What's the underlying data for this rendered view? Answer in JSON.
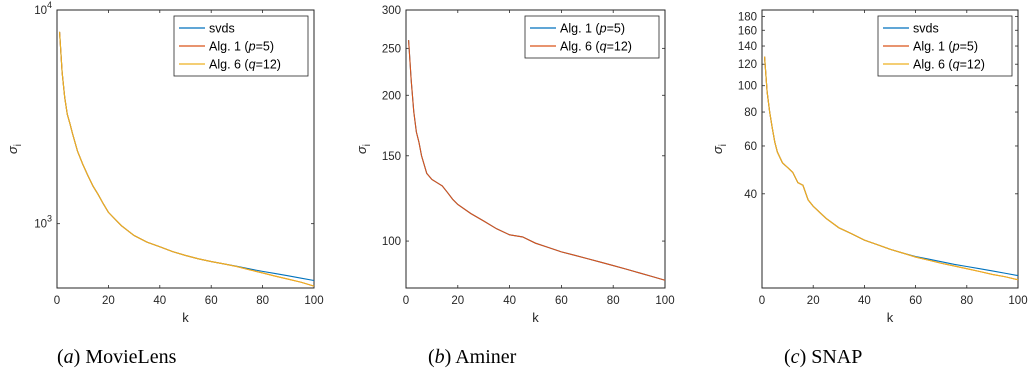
{
  "colors": {
    "svds": "#0072BD",
    "alg1": "#D95319",
    "alg6": "#EDB120"
  },
  "panels": [
    {
      "caption_prefix": "(",
      "caption_letter": "a",
      "caption_suffix": ") MovieLens",
      "chart_data": {
        "type": "line",
        "xlabel": "k",
        "ylabel": "σ_i",
        "xlim": [
          0,
          100
        ],
        "ylim": [
          500,
          10000
        ],
        "yscale": "log",
        "xticks": [
          0,
          20,
          40,
          60,
          80,
          100
        ],
        "xtick_labels": [
          "0",
          "20",
          "40",
          "60",
          "80",
          "100"
        ],
        "yticks": [
          1000,
          10000
        ],
        "ytick_labels": [
          "10³",
          "10⁴"
        ],
        "legend_position": "top-right",
        "x": [
          1,
          2,
          3,
          4,
          5,
          6,
          8,
          10,
          12,
          14,
          16,
          18,
          20,
          25,
          30,
          35,
          40,
          45,
          50,
          55,
          60,
          65,
          70,
          75,
          80,
          85,
          90,
          95,
          100
        ],
        "series": [
          {
            "name_prefix": "svds",
            "name_var": "",
            "name_suffix": "",
            "color_key": "svds",
            "values": [
              7900,
              5100,
              3900,
              3250,
              2950,
              2650,
              2180,
              1900,
              1680,
              1500,
              1370,
              1240,
              1130,
              980,
              880,
              820,
              780,
              740,
              710,
              685,
              665,
              648,
              632,
              614,
              598,
              584,
              570,
              556,
              542
            ]
          },
          {
            "name_prefix": "Alg. 1 (",
            "name_var": "p",
            "name_suffix": "=5)",
            "color_key": "alg1",
            "values": [
              7900,
              5100,
              3900,
              3250,
              2950,
              2650,
              2180,
              1900,
              1680,
              1500,
              1370,
              1240,
              1130,
              980,
              880,
              820,
              780,
              740,
              710,
              685,
              665,
              648,
              630,
              608,
              588,
              568,
              550,
              532,
              510
            ]
          },
          {
            "name_prefix": "Alg. 6 (",
            "name_var": "q",
            "name_suffix": "=12)",
            "color_key": "alg6",
            "values": [
              7900,
              5100,
              3900,
              3250,
              2950,
              2650,
              2180,
              1900,
              1680,
              1500,
              1370,
              1240,
              1130,
              980,
              880,
              820,
              780,
              740,
              710,
              685,
              665,
              648,
              630,
              608,
              588,
              568,
              550,
              532,
              510
            ]
          }
        ]
      }
    },
    {
      "caption_prefix": "(",
      "caption_letter": "b",
      "caption_suffix": ") Aminer",
      "chart_data": {
        "type": "line",
        "xlabel": "k",
        "ylabel": "σ_i",
        "xlim": [
          0,
          100
        ],
        "ylim": [
          80,
          300
        ],
        "yscale": "log",
        "xticks": [
          0,
          20,
          40,
          60,
          80,
          100
        ],
        "xtick_labels": [
          "0",
          "20",
          "40",
          "60",
          "80",
          "100"
        ],
        "yticks": [
          100,
          150,
          200,
          250,
          300
        ],
        "ytick_labels": [
          "100",
          "150",
          "200",
          "250",
          "300"
        ],
        "legend_position": "top-right",
        "x": [
          1,
          2,
          3,
          4,
          5,
          6,
          8,
          10,
          12,
          14,
          16,
          18,
          20,
          25,
          30,
          35,
          40,
          45,
          50,
          55,
          60,
          65,
          70,
          75,
          80,
          85,
          90,
          95,
          100
        ],
        "series": [
          {
            "name_prefix": "Alg. 1 (",
            "name_var": "p",
            "name_suffix": "=5)",
            "color_key": "svds",
            "values": [
              260,
              215,
              185,
              168,
              160,
              150,
              138,
              134,
              132,
              130,
              126,
              122,
              119,
              114,
              110,
              106,
              103,
              102,
              99,
              97,
              95,
              93.5,
              92,
              90.5,
              89,
              87.5,
              86,
              84.5,
              83
            ]
          },
          {
            "name_prefix": "Alg. 6 (",
            "name_var": "q",
            "name_suffix": "=12)",
            "color_key": "alg1",
            "values": [
              260,
              215,
              185,
              168,
              160,
              150,
              138,
              134,
              132,
              130,
              126,
              122,
              119,
              114,
              110,
              106,
              103,
              102,
              99,
              97,
              95,
              93.5,
              92,
              90.5,
              89,
              87.5,
              86,
              84.5,
              83
            ]
          }
        ]
      }
    },
    {
      "caption_prefix": "(",
      "caption_letter": "c",
      "caption_suffix": ") SNAP",
      "chart_data": {
        "type": "line",
        "xlabel": "k",
        "ylabel": "σ_i",
        "xlim": [
          0,
          100
        ],
        "ylim": [
          18,
          190
        ],
        "yscale": "log",
        "xticks": [
          0,
          20,
          40,
          60,
          80,
          100
        ],
        "xtick_labels": [
          "0",
          "20",
          "40",
          "60",
          "80",
          "100"
        ],
        "yticks": [
          40,
          60,
          80,
          100,
          120,
          140,
          160,
          180
        ],
        "ytick_labels": [
          "40",
          "60",
          "80",
          "100",
          "120",
          "140",
          "160",
          "180"
        ],
        "legend_position": "top-right",
        "x": [
          1,
          2,
          3,
          4,
          5,
          6,
          8,
          10,
          12,
          14,
          16,
          18,
          20,
          25,
          30,
          35,
          40,
          45,
          50,
          55,
          60,
          65,
          70,
          75,
          80,
          85,
          90,
          95,
          100
        ],
        "series": [
          {
            "name_prefix": "svds",
            "name_var": "",
            "name_suffix": "",
            "color_key": "svds",
            "values": [
              128,
              95,
              80,
              70,
              62,
              57,
              52,
              50,
              48,
              44,
              43,
              38,
              36,
              32.5,
              30,
              28.5,
              27,
              26,
              25,
              24.2,
              23.5,
              23,
              22.5,
              22,
              21.6,
              21.2,
              20.8,
              20.4,
              20
            ]
          },
          {
            "name_prefix": "Alg. 1 (",
            "name_var": "p",
            "name_suffix": "=5)",
            "color_key": "alg1",
            "values": [
              128,
              95,
              80,
              70,
              62,
              57,
              52,
              50,
              48,
              44,
              43,
              38,
              36,
              32.5,
              30,
              28.5,
              27,
              26,
              25,
              24.2,
              23.4,
              22.8,
              22.2,
              21.7,
              21.2,
              20.7,
              20.2,
              19.8,
              19.3
            ]
          },
          {
            "name_prefix": "Alg. 6 (",
            "name_var": "q",
            "name_suffix": "=12)",
            "color_key": "alg6",
            "values": [
              128,
              95,
              80,
              70,
              62,
              57,
              52,
              50,
              48,
              44,
              43,
              38,
              36,
              32.5,
              30,
              28.5,
              27,
              26,
              25,
              24.2,
              23.4,
              22.8,
              22.2,
              21.7,
              21.2,
              20.7,
              20.2,
              19.8,
              19.3
            ]
          }
        ]
      }
    }
  ]
}
